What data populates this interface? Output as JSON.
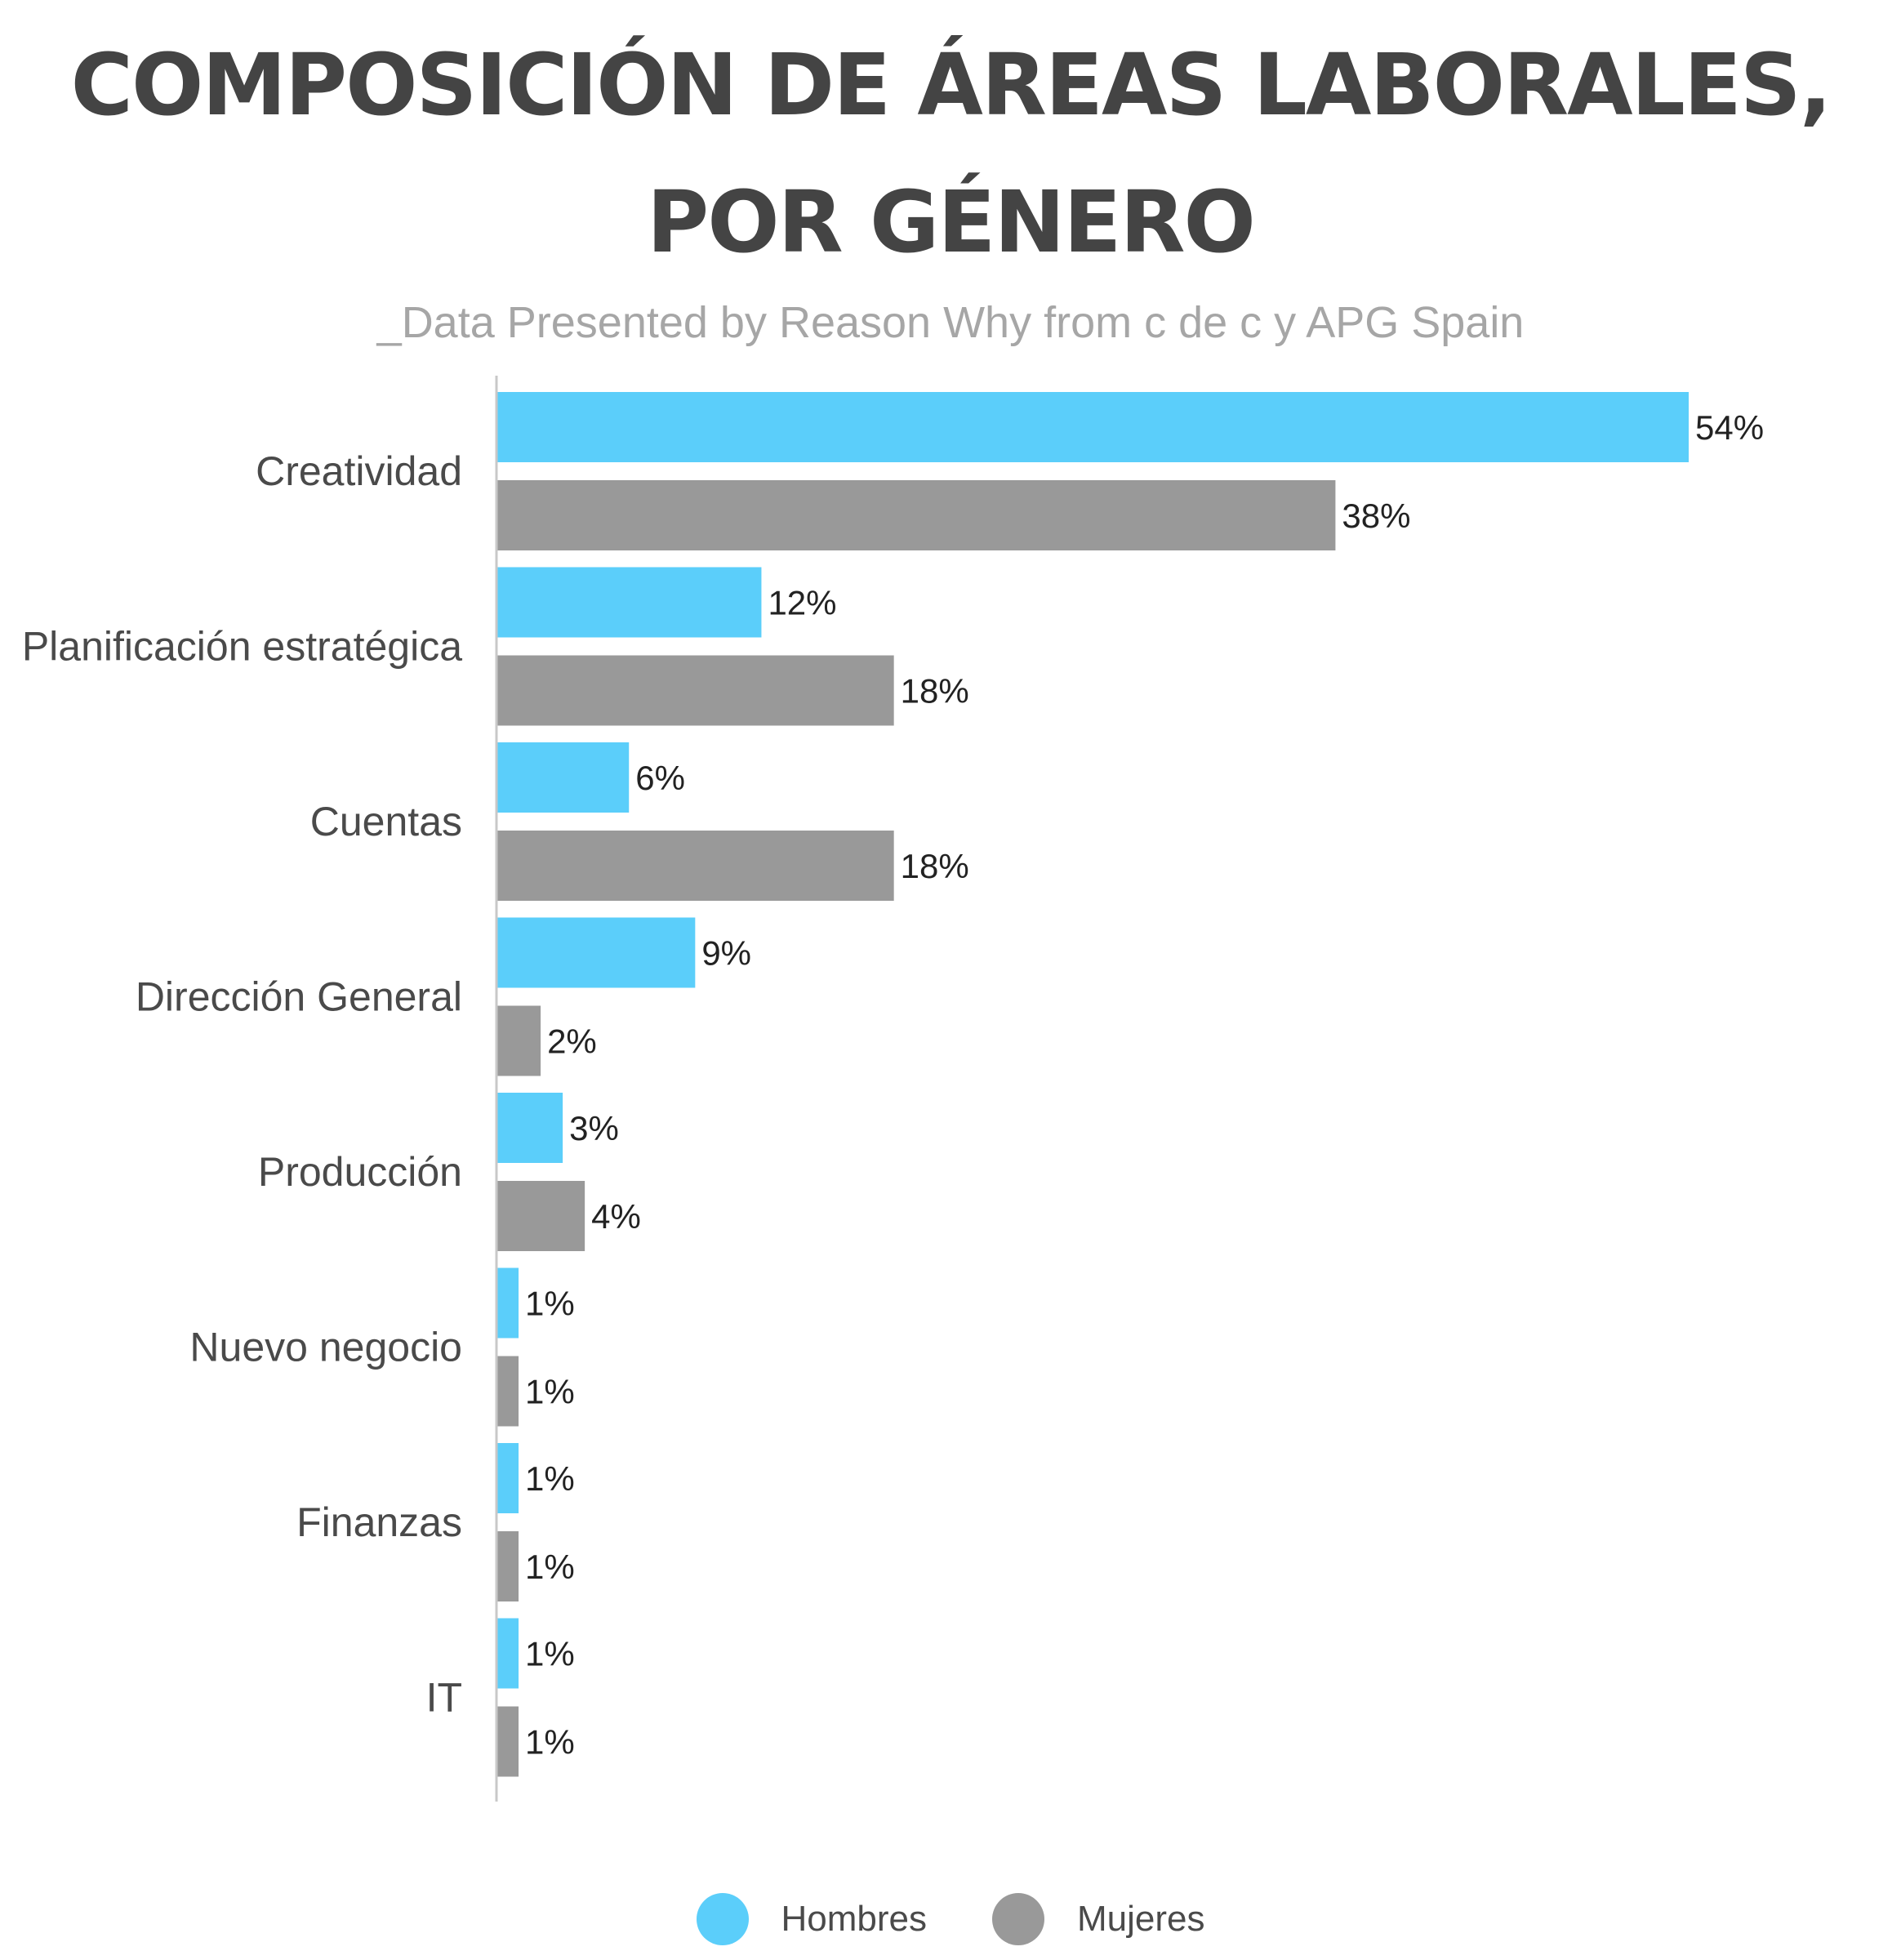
{
  "chart_data": {
    "type": "bar",
    "orientation": "horizontal",
    "title_lines": [
      "COMPOSICIÓN DE ÁREAS LABORALES,",
      "POR GÉNERO"
    ],
    "subtitle": "_Data Presented by Reason Why from c de c y APG Spain",
    "categories": [
      "Creatividad",
      "Planificación estratégica",
      "Cuentas",
      "Dirección General",
      "Producción",
      "Nuevo negocio",
      "Finanzas",
      "IT"
    ],
    "series": [
      {
        "name": "Hombres",
        "color": "#5bcefa",
        "values": [
          54,
          12,
          6,
          9,
          3,
          1,
          1,
          1
        ]
      },
      {
        "name": "Mujeres",
        "color": "#999999",
        "values": [
          38,
          18,
          18,
          2,
          4,
          1,
          1,
          1
        ]
      }
    ],
    "value_suffix": "%",
    "xlim": [
      0,
      54
    ],
    "grid": false,
    "legend_position": "bottom-center"
  }
}
